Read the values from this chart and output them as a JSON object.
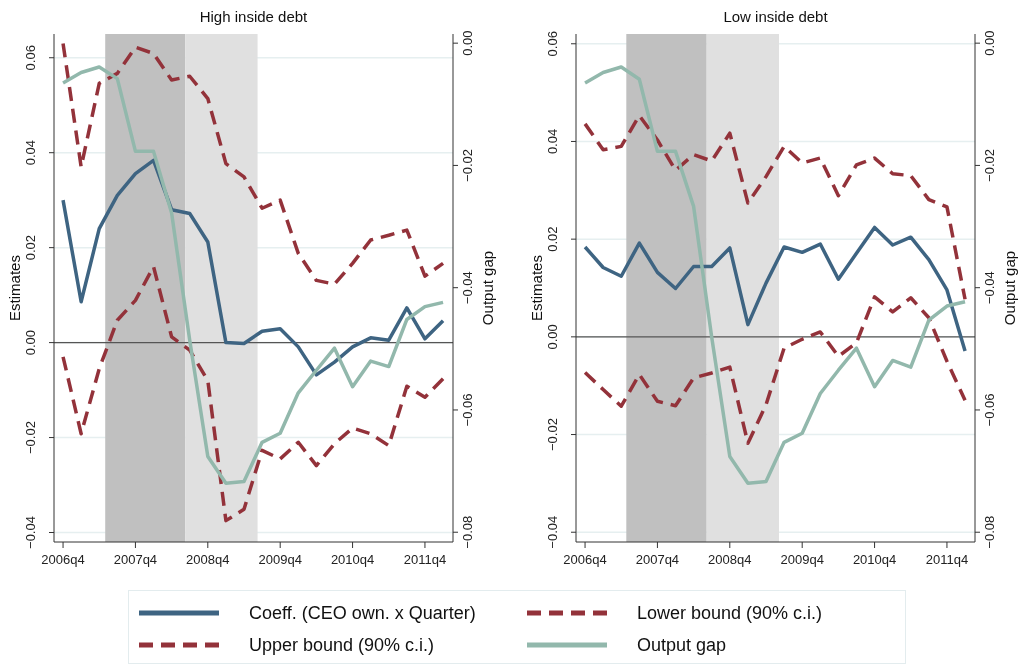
{
  "chart_data": [
    {
      "type": "line",
      "title": "High inside debt",
      "ylabel": "Estimates",
      "y2label": "Output gap",
      "categories": [
        "2006q4",
        null,
        null,
        null,
        "2007q4",
        null,
        null,
        null,
        "2008q4",
        null,
        null,
        null,
        "2009q4",
        null,
        null,
        null,
        "2010q4",
        null,
        null,
        null,
        "2011q4",
        null
      ],
      "ylim": [
        -0.042,
        0.065
      ],
      "yticks": [
        {
          "value": -0.04,
          "label": "−0.04"
        },
        {
          "value": -0.02,
          "label": "−0.02"
        },
        {
          "value": 0,
          "label": "0.00"
        },
        {
          "value": 0.02,
          "label": "0.02"
        },
        {
          "value": 0.04,
          "label": "0.04"
        },
        {
          "value": 0.06,
          "label": "0.06"
        }
      ],
      "y2lim": [
        -0.0816,
        0.0015
      ],
      "y2ticks": [
        {
          "value": -0.08,
          "label": "−0.08"
        },
        {
          "value": -0.06,
          "label": "−0.06"
        },
        {
          "value": -0.04,
          "label": "−0.04"
        },
        {
          "value": -0.02,
          "label": "−0.02"
        },
        {
          "value": 0,
          "label": "0.00"
        }
      ],
      "grid": "y",
      "legend": "bottom",
      "marker": "none",
      "ref_lines": [
        {
          "axis": "y",
          "value": 0,
          "color": "#555555"
        }
      ],
      "series": [
        {
          "name": "Coeff. (CEO own. x Quarter)",
          "color": "#3e6482",
          "line_style": "solid",
          "values": [
            0.03,
            0.0086,
            0.024,
            0.031,
            0.0356,
            0.0384,
            0.028,
            0.0272,
            0.0212,
            0.0,
            -0.0002,
            0.0024,
            0.0029,
            -0.0009,
            -0.0068,
            -0.0041,
            -0.0009,
            0.001,
            0.0005,
            0.0073,
            0.0008,
            0.0046
          ]
        },
        {
          "name": "Upper bound (90% c.i.)",
          "color": "#93323a",
          "line_style": "dashed",
          "values": [
            0.063,
            0.037,
            0.0546,
            0.0567,
            0.0622,
            0.0609,
            0.0553,
            0.0561,
            0.0514,
            0.0377,
            0.0349,
            0.0283,
            0.03,
            0.0188,
            0.0131,
            0.0123,
            0.0167,
            0.0216,
            0.0226,
            0.0237,
            0.014,
            0.0167
          ]
        },
        {
          "name": "Lower bound (90% c.i.)",
          "color": "#93323a",
          "line_style": "dashed",
          "values": [
            -0.003,
            -0.0192,
            -0.0055,
            0.0047,
            0.0089,
            0.016,
            0.0012,
            -0.0016,
            -0.008,
            -0.0375,
            -0.0351,
            -0.0227,
            -0.0245,
            -0.021,
            -0.0259,
            -0.0213,
            -0.018,
            -0.0192,
            -0.0217,
            -0.0092,
            -0.0115,
            -0.0076
          ]
        },
        {
          "name": "Output gap",
          "color": "#92b8ac",
          "line_style": "solid",
          "axis": "y2",
          "values": [
            -0.0065,
            -0.0048,
            -0.0039,
            -0.0058,
            -0.0177,
            -0.0177,
            -0.0278,
            -0.0486,
            -0.0676,
            -0.072,
            -0.0717,
            -0.0653,
            -0.0638,
            -0.0572,
            -0.0535,
            -0.0499,
            -0.0562,
            -0.052,
            -0.0529,
            -0.0452,
            -0.0431,
            -0.0424
          ]
        }
      ]
    },
    {
      "type": "line",
      "title": "Low inside debt",
      "ylabel": "Estimates",
      "y2label": "Output gap",
      "categories": [
        "2006q4",
        null,
        null,
        null,
        "2007q4",
        null,
        null,
        null,
        "2008q4",
        null,
        null,
        null,
        "2009q4",
        null,
        null,
        null,
        "2010q4",
        null,
        null,
        null,
        "2011q4",
        null
      ],
      "ylim": [
        -0.042,
        0.062
      ],
      "yticks": [
        {
          "value": -0.04,
          "label": "−0.04"
        },
        {
          "value": -0.02,
          "label": "−0.02"
        },
        {
          "value": 0,
          "label": "0.00"
        },
        {
          "value": 0.02,
          "label": "0.02"
        },
        {
          "value": 0.04,
          "label": "0.04"
        },
        {
          "value": 0.06,
          "label": "0.06"
        }
      ],
      "y2lim": [
        -0.0816,
        0.0015
      ],
      "y2ticks": [
        {
          "value": -0.08,
          "label": "−0.08"
        },
        {
          "value": -0.06,
          "label": "−0.06"
        },
        {
          "value": -0.04,
          "label": "−0.04"
        },
        {
          "value": -0.02,
          "label": "−0.02"
        },
        {
          "value": 0,
          "label": "0.00"
        }
      ],
      "grid": "y",
      "marker": "none",
      "ref_lines": [
        {
          "axis": "y",
          "value": 0,
          "color": "#555555"
        }
      ],
      "series": [
        {
          "color": "#3e6482",
          "line_style": "solid",
          "values": [
            0.0184,
            0.0142,
            0.0124,
            0.0192,
            0.0132,
            0.0099,
            0.0144,
            0.0144,
            0.0182,
            0.0025,
            0.011,
            0.0184,
            0.0173,
            0.019,
            0.0118,
            0.0171,
            0.0224,
            0.0188,
            0.0204,
            0.0158,
            0.0096,
            -0.0029
          ]
        },
        {
          "color": "#93323a",
          "line_style": "dashed",
          "values": [
            0.0436,
            0.0383,
            0.039,
            0.0453,
            0.0403,
            0.0341,
            0.0373,
            0.036,
            0.0417,
            0.0274,
            0.0328,
            0.039,
            0.0356,
            0.0366,
            0.0289,
            0.0352,
            0.0366,
            0.0334,
            0.033,
            0.0281,
            0.0266,
            0.0077
          ]
        },
        {
          "color": "#93323a",
          "line_style": "dashed",
          "values": [
            -0.0073,
            -0.0108,
            -0.0142,
            -0.0077,
            -0.0132,
            -0.0141,
            -0.0084,
            -0.0074,
            -0.0062,
            -0.0218,
            -0.0139,
            -0.0023,
            -0.0005,
            0.001,
            -0.004,
            -0.0012,
            0.0082,
            0.0051,
            0.008,
            0.0039,
            -0.005,
            -0.013
          ]
        },
        {
          "color": "#92b8ac",
          "line_style": "solid",
          "axis": "y2",
          "values": [
            -0.0065,
            -0.0048,
            -0.0039,
            -0.0059,
            -0.0177,
            -0.0177,
            -0.0267,
            -0.0481,
            -0.0676,
            -0.072,
            -0.0717,
            -0.0653,
            -0.0638,
            -0.0573,
            -0.0535,
            -0.0499,
            -0.0562,
            -0.0519,
            -0.053,
            -0.0453,
            -0.043,
            -0.0423
          ]
        }
      ]
    }
  ]
}
